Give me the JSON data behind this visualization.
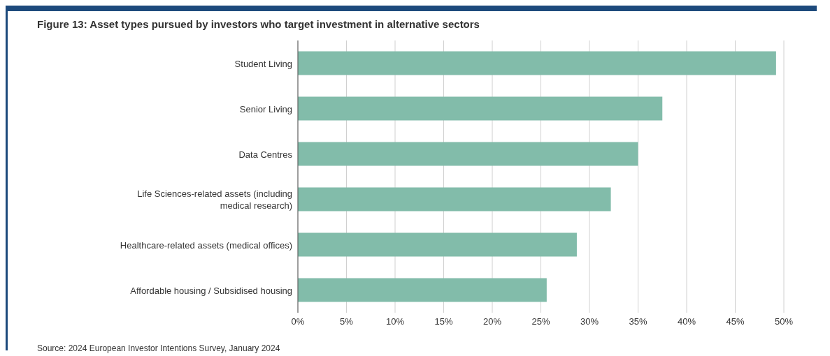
{
  "chart_data": {
    "type": "bar",
    "orientation": "horizontal",
    "title": "Figure 13: Asset types pursued by investors who target investment in alternative sectors",
    "categories": [
      "Student Living",
      "Senior Living",
      "Data Centres",
      "Life Sciences-related assets (including medical research)",
      "Healthcare-related assets (medical offices)",
      "Affordable housing / Subsidised housing"
    ],
    "values": [
      49.2,
      37.5,
      35,
      32.2,
      28.7,
      25.6
    ],
    "color": "#82bcaa",
    "xlim": [
      0,
      50
    ],
    "xticks": [
      {
        "value": 0,
        "label": "0%"
      },
      {
        "value": 5,
        "label": "5%"
      },
      {
        "value": 10,
        "label": "10%"
      },
      {
        "value": 15,
        "label": "15%"
      },
      {
        "value": 20,
        "label": "20%"
      },
      {
        "value": 25,
        "label": "25%"
      },
      {
        "value": 30,
        "label": "30%"
      },
      {
        "value": 35,
        "label": "35%"
      },
      {
        "value": 40,
        "label": "40%"
      },
      {
        "value": 45,
        "label": "45%"
      },
      {
        "value": 50,
        "label": "50%"
      }
    ],
    "grid": "x",
    "annotations": [
      "Source: 2024 European Investor Intentions Survey, January 2024"
    ]
  }
}
